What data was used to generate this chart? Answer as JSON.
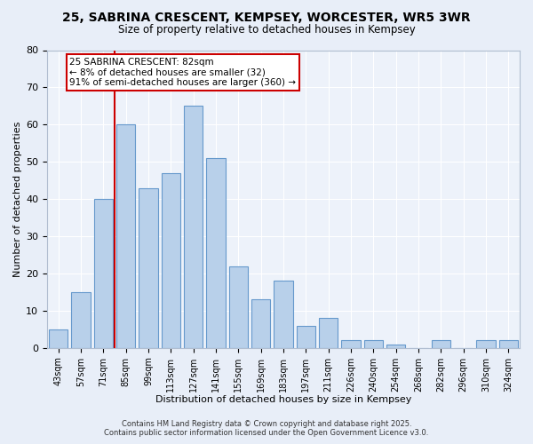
{
  "title1": "25, SABRINA CRESCENT, KEMPSEY, WORCESTER, WR5 3WR",
  "title2": "Size of property relative to detached houses in Kempsey",
  "xlabel": "Distribution of detached houses by size in Kempsey",
  "ylabel": "Number of detached properties",
  "categories": [
    "43sqm",
    "57sqm",
    "71sqm",
    "85sqm",
    "99sqm",
    "113sqm",
    "127sqm",
    "141sqm",
    "155sqm",
    "169sqm",
    "183sqm",
    "197sqm",
    "211sqm",
    "226sqm",
    "240sqm",
    "254sqm",
    "268sqm",
    "282sqm",
    "296sqm",
    "310sqm",
    "324sqm"
  ],
  "values": [
    5,
    15,
    40,
    60,
    43,
    47,
    65,
    51,
    22,
    13,
    18,
    6,
    8,
    2,
    2,
    1,
    0,
    2,
    0,
    2,
    2
  ],
  "bar_color": "#b8d0ea",
  "bar_edge_color": "#6699cc",
  "red_line_x": 3.0,
  "annotation_text": "25 SABRINA CRESCENT: 82sqm\n← 8% of detached houses are smaller (32)\n91% of semi-detached houses are larger (360) →",
  "annotation_box_color": "#ffffff",
  "annotation_box_edge": "#cc0000",
  "footer1": "Contains HM Land Registry data © Crown copyright and database right 2025.",
  "footer2": "Contains public sector information licensed under the Open Government Licence v3.0.",
  "bg_color": "#e8eef8",
  "plot_bg_color": "#edf2fa",
  "grid_color": "#ffffff",
  "ylim": [
    0,
    80
  ],
  "yticks": [
    0,
    10,
    20,
    30,
    40,
    50,
    60,
    70,
    80
  ]
}
